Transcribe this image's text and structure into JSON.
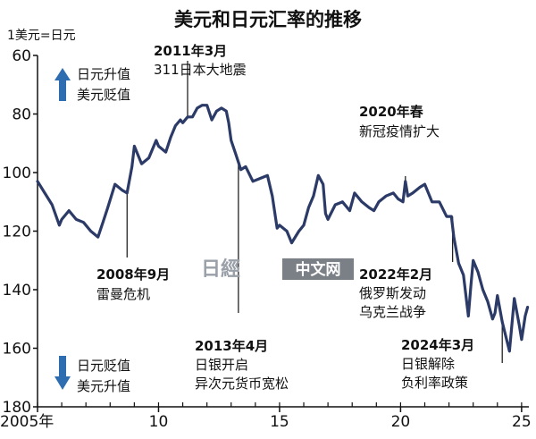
{
  "chart_data": {
    "type": "line",
    "title": "美元和日元汇率的推移",
    "ylabel": "1美元=日元",
    "ylim": [
      60,
      180
    ],
    "y_inverted": true,
    "yticks": [
      60,
      80,
      100,
      120,
      140,
      160,
      180
    ],
    "xlim": [
      2005,
      2025.3
    ],
    "xticks": [
      {
        "value": 2005,
        "label": "2005年"
      },
      {
        "value": 2010,
        "label": "10"
      },
      {
        "value": 2015,
        "label": "15"
      },
      {
        "value": 2020,
        "label": "20"
      },
      {
        "value": 2025,
        "label": "25"
      }
    ],
    "grid": false,
    "series": [
      {
        "color": "#2b3a67",
        "points": [
          [
            2005.0,
            103
          ],
          [
            2005.3,
            107
          ],
          [
            2005.6,
            111
          ],
          [
            2005.9,
            118
          ],
          [
            2006.0,
            116
          ],
          [
            2006.3,
            113
          ],
          [
            2006.6,
            116
          ],
          [
            2006.9,
            117
          ],
          [
            2007.2,
            120
          ],
          [
            2007.5,
            122
          ],
          [
            2007.7,
            117
          ],
          [
            2007.9,
            112
          ],
          [
            2008.2,
            104
          ],
          [
            2008.5,
            106
          ],
          [
            2008.7,
            107
          ],
          [
            2008.9,
            98
          ],
          [
            2009.0,
            91
          ],
          [
            2009.3,
            97
          ],
          [
            2009.6,
            95
          ],
          [
            2009.9,
            89
          ],
          [
            2010.0,
            91
          ],
          [
            2010.3,
            93
          ],
          [
            2010.5,
            88
          ],
          [
            2010.7,
            84
          ],
          [
            2010.9,
            82
          ],
          [
            2011.0,
            83
          ],
          [
            2011.2,
            81
          ],
          [
            2011.4,
            81
          ],
          [
            2011.6,
            78
          ],
          [
            2011.8,
            77
          ],
          [
            2012.0,
            77
          ],
          [
            2012.2,
            82
          ],
          [
            2012.4,
            79
          ],
          [
            2012.6,
            78
          ],
          [
            2012.8,
            79
          ],
          [
            2012.9,
            83
          ],
          [
            2013.0,
            89
          ],
          [
            2013.2,
            94
          ],
          [
            2013.4,
            99
          ],
          [
            2013.6,
            98
          ],
          [
            2013.9,
            103
          ],
          [
            2014.2,
            102
          ],
          [
            2014.5,
            101
          ],
          [
            2014.7,
            108
          ],
          [
            2014.9,
            119
          ],
          [
            2015.0,
            118
          ],
          [
            2015.3,
            120
          ],
          [
            2015.5,
            124
          ],
          [
            2015.8,
            120
          ],
          [
            2016.0,
            118
          ],
          [
            2016.2,
            112
          ],
          [
            2016.4,
            108
          ],
          [
            2016.6,
            101
          ],
          [
            2016.8,
            104
          ],
          [
            2016.9,
            114
          ],
          [
            2017.0,
            116
          ],
          [
            2017.3,
            111
          ],
          [
            2017.6,
            110
          ],
          [
            2017.9,
            113
          ],
          [
            2018.1,
            107
          ],
          [
            2018.4,
            110
          ],
          [
            2018.7,
            112
          ],
          [
            2018.9,
            113
          ],
          [
            2019.1,
            110
          ],
          [
            2019.4,
            108
          ],
          [
            2019.7,
            107
          ],
          [
            2019.9,
            109
          ],
          [
            2020.1,
            110
          ],
          [
            2020.2,
            103
          ],
          [
            2020.3,
            108
          ],
          [
            2020.5,
            107
          ],
          [
            2020.8,
            105
          ],
          [
            2021.0,
            104
          ],
          [
            2021.3,
            110
          ],
          [
            2021.6,
            110
          ],
          [
            2021.9,
            115
          ],
          [
            2022.1,
            115
          ],
          [
            2022.2,
            122
          ],
          [
            2022.4,
            131
          ],
          [
            2022.6,
            135
          ],
          [
            2022.8,
            149
          ],
          [
            2022.9,
            139
          ],
          [
            2023.0,
            130
          ],
          [
            2023.2,
            134
          ],
          [
            2023.4,
            140
          ],
          [
            2023.6,
            144
          ],
          [
            2023.8,
            150
          ],
          [
            2023.9,
            148
          ],
          [
            2024.0,
            142
          ],
          [
            2024.2,
            151
          ],
          [
            2024.5,
            161
          ],
          [
            2024.7,
            143
          ],
          [
            2024.9,
            152
          ],
          [
            2025.0,
            157
          ],
          [
            2025.15,
            149
          ],
          [
            2025.25,
            146
          ]
        ]
      }
    ],
    "annotations": [
      {
        "title": "2011年3月",
        "text": "311日本大地震",
        "x": 2011.2,
        "y": 81
      },
      {
        "title": "2008年9月",
        "text": "雷曼危机",
        "x": 2008.7,
        "y": 107
      },
      {
        "title": "2013年4月",
        "text": "日银开启",
        "text2": "异次元货币宽松",
        "x": 2013.3,
        "y": 97
      },
      {
        "title": "2020年春",
        "text": "新冠疫情扩大",
        "x": 2020.2,
        "y": 106
      },
      {
        "title": "2022年2月",
        "text": "俄罗斯发动",
        "text2": "乌克兰战争",
        "x": 2022.15,
        "y": 115
      },
      {
        "title": "2024年3月",
        "text": "日银解除",
        "text2": "负利率政策",
        "x": 2024.2,
        "y": 151
      }
    ],
    "legend_top": {
      "line1": "日元升值",
      "line2": "美元贬值",
      "direction": "up"
    },
    "legend_bottom": {
      "line1": "日元贬值",
      "line2": "美元升值",
      "direction": "down"
    }
  },
  "watermark": {
    "logo": "日經",
    "label": "中文网"
  },
  "colors": {
    "line": "#2b3a67",
    "arrow": "#2d6db0",
    "axis": "#111111"
  }
}
